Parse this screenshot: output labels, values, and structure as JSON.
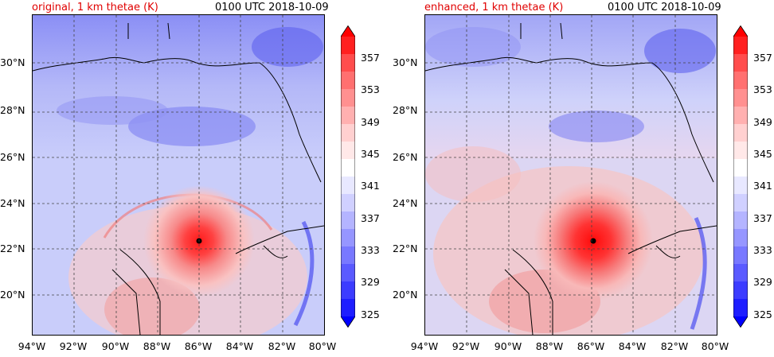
{
  "panels": [
    {
      "title": "original, 1 km thetae (K)",
      "time": "0100 UTC 2018-10-09"
    },
    {
      "title": "enhanced, 1 km thetae (K)",
      "time": "0100 UTC 2018-10-09"
    }
  ],
  "axes": {
    "y_ticks": [
      "30°N",
      "28°N",
      "26°N",
      "24°N",
      "22°N",
      "20°N"
    ],
    "x_ticks": [
      "94°W",
      "92°W",
      "90°W",
      "88°W",
      "86°W",
      "84°W",
      "82°W",
      "80°W"
    ]
  },
  "colorbar": {
    "labels": [
      "357",
      "353",
      "349",
      "345",
      "341",
      "337",
      "333",
      "329",
      "325"
    ],
    "colors": [
      "#ff0000",
      "#ff2020",
      "#ff4d4d",
      "#ff7070",
      "#ff9090",
      "#ffb0b0",
      "#ffd0d0",
      "#ffe8e8",
      "#ffffff",
      "#e8e8ff",
      "#d0d0ff",
      "#b4b4ff",
      "#9696ff",
      "#7878ff",
      "#5a5aff",
      "#3c3cff",
      "#1e1eff",
      "#0000ff"
    ]
  },
  "map_colors": {
    "background": "#c9cdfa",
    "blue_dark": "#5a5cf0",
    "blue_mid": "#9ea2f7",
    "pink": "#f8c4c4",
    "red_mid": "#f48080",
    "red_core": "#ff2a2a",
    "center": "#000000"
  }
}
